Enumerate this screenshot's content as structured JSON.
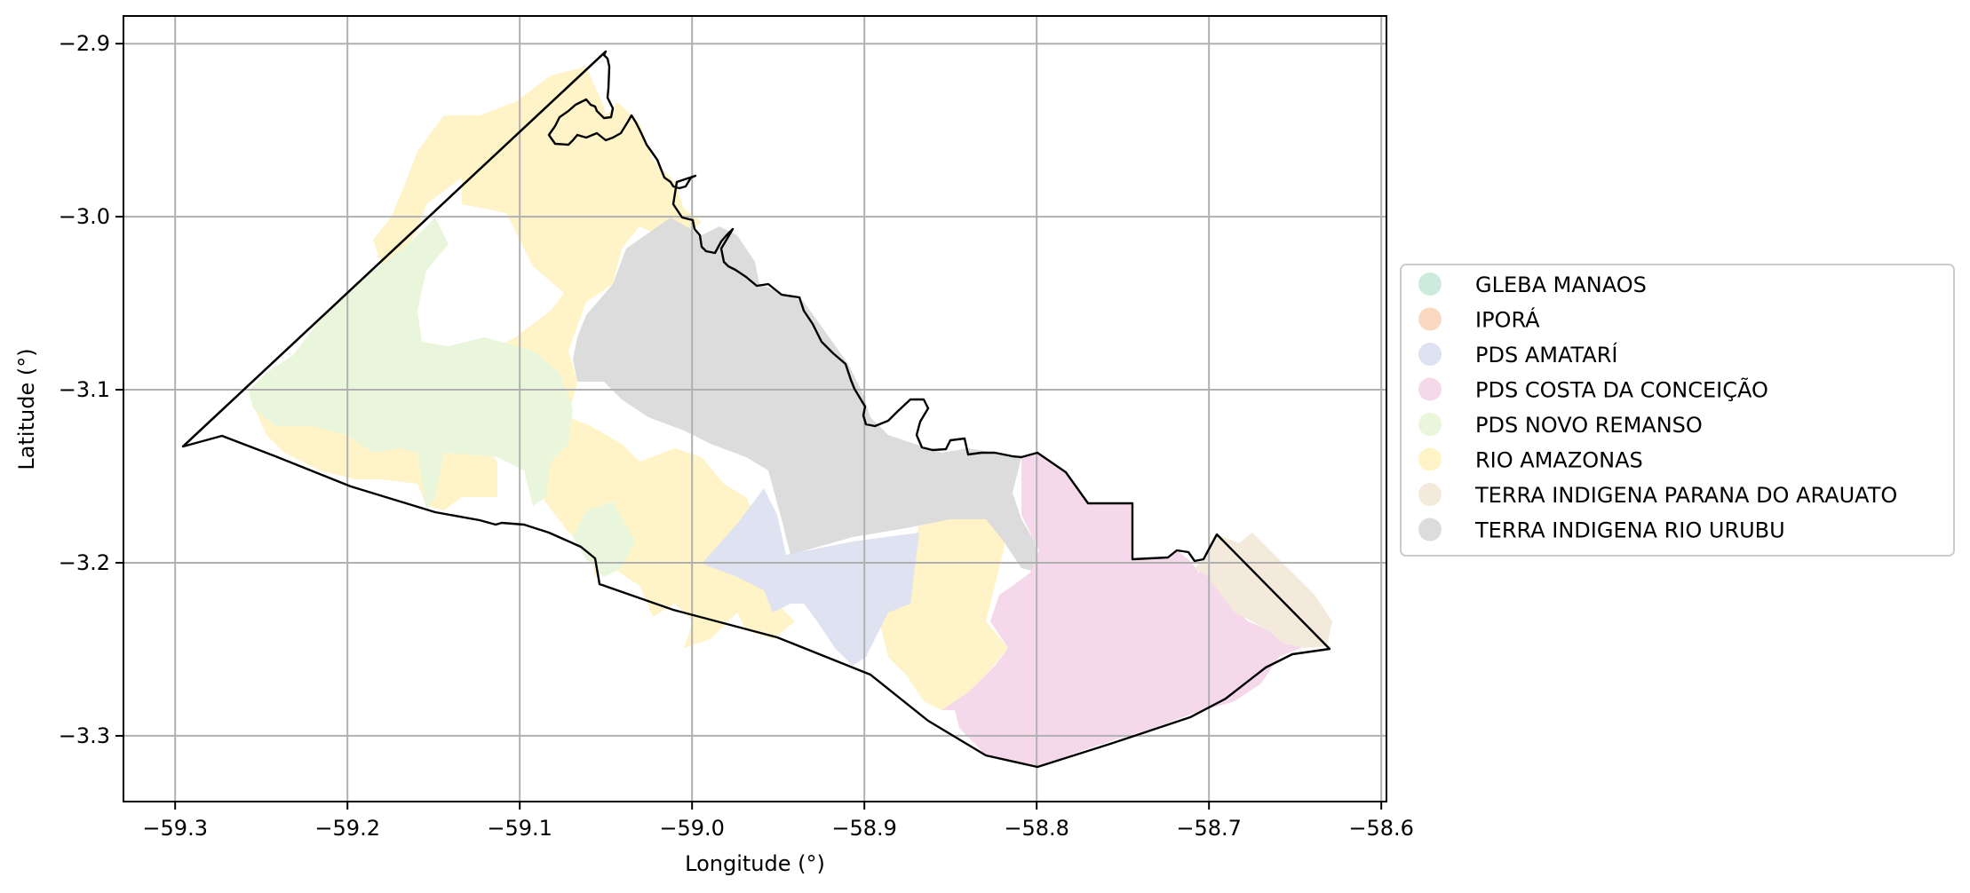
{
  "map": {
    "xlabel": "Longitude (°)",
    "ylabel": "Latitude (°)",
    "xlim": [
      -59.33,
      -58.597
    ],
    "ylim": [
      -3.338,
      -2.884
    ],
    "x_ticks": [
      -59.3,
      -59.2,
      -59.1,
      -59.0,
      -58.9,
      -58.8,
      -58.7,
      -58.6
    ],
    "y_ticks": [
      -2.9,
      -3.0,
      -3.1,
      -3.2,
      -3.3
    ],
    "x_tick_labels": [
      "−59.3",
      "−59.2",
      "−59.1",
      "−59.0",
      "−58.9",
      "−58.8",
      "−58.7",
      "−58.6"
    ],
    "y_tick_labels": [
      "−2.9",
      "−3.0",
      "−3.1",
      "−3.2",
      "−3.3"
    ],
    "grid": true,
    "legend_position": "right-center",
    "legend": [
      {
        "label": "GLEBA MANAOS",
        "color": "#cdebdc"
      },
      {
        "label": "IPORÁ",
        "color": "#fbd9c0"
      },
      {
        "label": "PDS AMATARÍ",
        "color": "#dfe3f1"
      },
      {
        "label": "PDS COSTA DA CONCEIÇÃO",
        "color": "#f5d9ea"
      },
      {
        "label": "PDS NOVO REMANSO",
        "color": "#eaf6db"
      },
      {
        "label": "RIO AMAZONAS",
        "color": "#fff4c8"
      },
      {
        "label": "TERRA INDIGENA PARANA DO ARAUATO",
        "color": "#f4eadc"
      },
      {
        "label": "TERRA INDIGENA RIO URUBU",
        "color": "#dcdcdc"
      }
    ]
  }
}
